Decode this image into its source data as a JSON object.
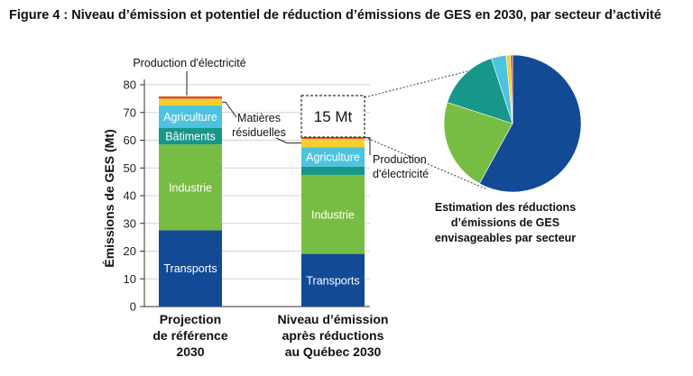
{
  "figure": {
    "title": "Figure 4 : Niveau d’émission et potentiel de réduction d’émissions de GES en 2030, par secteur d’activité"
  },
  "chart_data": {
    "type": "bar",
    "stacked": true,
    "ylabel": "Émissions de GES (Mt)",
    "ylim": [
      0,
      80
    ],
    "yticks": [
      0,
      10,
      20,
      30,
      40,
      50,
      60,
      70,
      80
    ],
    "grid": true,
    "categories": [
      [
        "Projection",
        "de référence",
        "2030"
      ],
      [
        "Niveau d’émission",
        "après réductions",
        "au Québec 2030"
      ]
    ],
    "series": [
      {
        "name": "Transports",
        "color": "#124a96",
        "values": [
          27.5,
          19
        ]
      },
      {
        "name": "Industrie",
        "color": "#78bd43",
        "values": [
          31,
          28.5
        ]
      },
      {
        "name": "Bâtiments",
        "color": "#17968a",
        "values": [
          6,
          3
        ]
      },
      {
        "name": "Agriculture",
        "color": "#4ec3e0",
        "values": [
          8,
          7
        ]
      },
      {
        "name": "Matières résiduelles",
        "color": "#f5d02e",
        "values": [
          2.5,
          3
        ]
      },
      {
        "name": "Production d’électricité",
        "color": "#e8452c",
        "values": [
          0.8,
          0.7
        ]
      }
    ],
    "annotations": {
      "top_label": "Production d'électricité",
      "mid_label": [
        "Matières",
        "résiduelles"
      ],
      "right_label": [
        "Production",
        "d'électricité"
      ],
      "reduction_box": "15 Mt"
    },
    "pie": {
      "title": [
        "Estimation des réductions",
        "d’émissions de GES",
        "envisageables par secteur"
      ],
      "slices": [
        {
          "sector": "Transports",
          "share": 0.58,
          "color": "#124a96"
        },
        {
          "sector": "Industrie",
          "share": 0.22,
          "color": "#78bd43"
        },
        {
          "sector": "Bâtiments",
          "share": 0.15,
          "color": "#17968a"
        },
        {
          "sector": "Agriculture",
          "share": 0.035,
          "color": "#4ec3e0"
        },
        {
          "sector": "Matières résiduelles",
          "share": 0.01,
          "color": "#f5d02e"
        },
        {
          "sector": "Production d’électricité",
          "share": 0.005,
          "color": "#e8452c"
        }
      ]
    }
  }
}
